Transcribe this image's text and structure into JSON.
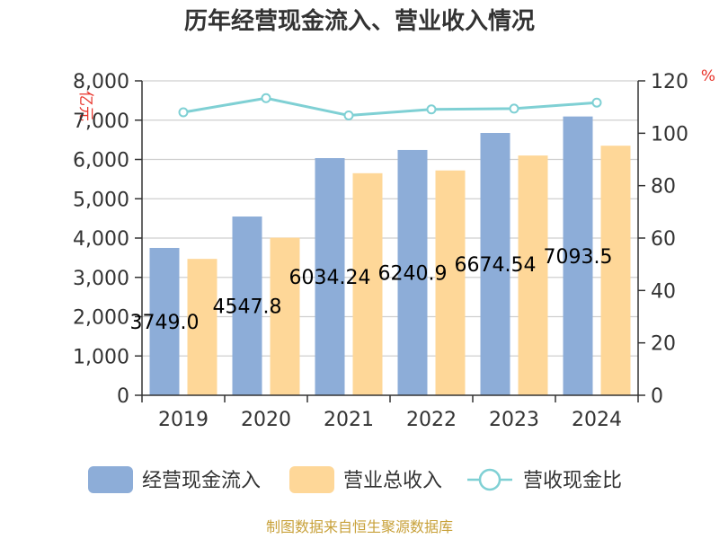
{
  "chart_data": {
    "type": "bar",
    "title": "历年经营现金流入、营业收入情况",
    "categories": [
      "2019",
      "2020",
      "2021",
      "2022",
      "2023",
      "2024"
    ],
    "series": [
      {
        "name": "经营现金流入",
        "axis": "left",
        "color": "#8dadd8",
        "values": [
          3749.0,
          4547.8,
          6034.2,
          6240.9,
          6674.5,
          7093.5
        ]
      },
      {
        "name": "营业总收入",
        "axis": "left",
        "color": "#fed798",
        "values": [
          3470,
          4010,
          5650,
          5720,
          6100,
          6350
        ]
      },
      {
        "name": "营收现金比",
        "axis": "right",
        "type": "line",
        "color": "#7fd0d4",
        "values": [
          108.0,
          113.4,
          106.8,
          109.1,
          109.4,
          111.7
        ]
      }
    ],
    "data_labels": [
      "3749.0",
      "4547.8",
      "6034.24",
      "6240.9",
      "6674.54",
      "7093.5"
    ],
    "left_axis": {
      "unit": "亿元",
      "ylim": [
        0,
        8000
      ],
      "ticks": [
        "0",
        "1,000",
        "2,000",
        "3,000",
        "4,000",
        "5,000",
        "6,000",
        "7,000",
        "8,000"
      ]
    },
    "right_axis": {
      "unit": "%",
      "ylim": [
        0,
        120
      ],
      "ticks": [
        "0",
        "20",
        "40",
        "60",
        "80",
        "100",
        "120"
      ]
    },
    "legend": [
      "经营现金流入",
      "营业总收入",
      "营收现金比"
    ],
    "legend_position": "bottom",
    "grid": true
  },
  "source": "制图数据来自恒生聚源数据库"
}
